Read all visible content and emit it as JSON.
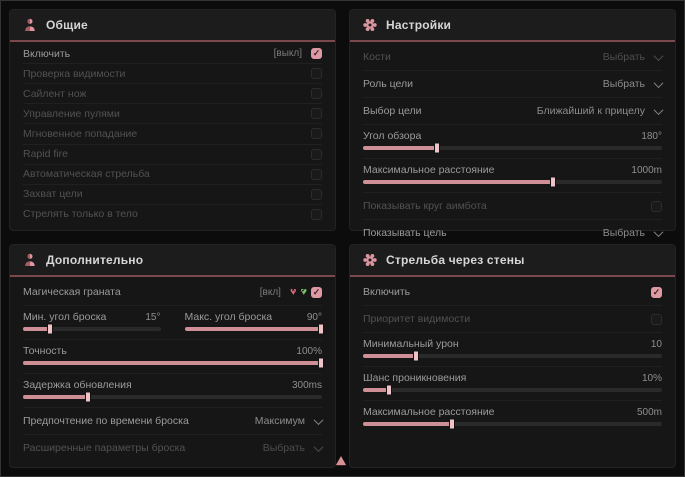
{
  "colors": {
    "accent_pink": "#dd9aa3",
    "slider_fill": "#cf8f96",
    "header_underline": "#7d474e",
    "panel_bg": "#161616",
    "outer_bg": "#0c0c0c"
  },
  "general": {
    "title": "Общие",
    "rows": [
      {
        "label": "Включить",
        "value": "[выкл]",
        "checked": true
      },
      {
        "label": "Проверка видимости",
        "checked": false
      },
      {
        "label": "Сайлент нож",
        "checked": false
      },
      {
        "label": "Управление пулями",
        "checked": false
      },
      {
        "label": "Мгновенное попадание",
        "checked": false
      },
      {
        "label": "Rapid fire",
        "checked": false
      },
      {
        "label": "Автоматическая стрельба",
        "checked": false
      },
      {
        "label": "Захват цели",
        "checked": false
      },
      {
        "label": "Стрелять только в тело",
        "checked": false
      }
    ]
  },
  "settings": {
    "title": "Настройки",
    "rows": {
      "bones": {
        "label": "Кости",
        "value": "Выбрать"
      },
      "target_role": {
        "label": "Роль цели",
        "value": "Выбрать"
      },
      "target_select": {
        "label": "Выбор цели",
        "value": "Ближайший к прицелу"
      },
      "fov": {
        "label": "Угол обзора",
        "value": "180°",
        "percent": 25
      },
      "max_distance": {
        "label": "Максимальное расстояние",
        "value": "1000m",
        "percent": 64
      },
      "show_circle": {
        "label": "Показывать круг аимбота",
        "checked": false
      },
      "show_target": {
        "label": "Показывать цель",
        "value": "Выбрать"
      }
    }
  },
  "additional": {
    "title": "Дополнительно",
    "rows": {
      "magic_grenade": {
        "label": "Магическая граната",
        "value": "[вкл]",
        "checked": true
      },
      "min_angle": {
        "label": "Мин. угол броска",
        "value": "15°",
        "percent": 20
      },
      "max_angle": {
        "label": "Макс. угол броска",
        "value": "90°",
        "percent": 100
      },
      "accuracy": {
        "label": "Точность",
        "value": "100%",
        "percent": 100
      },
      "update_delay": {
        "label": "Задержка обновления",
        "value": "300ms",
        "percent": 22
      },
      "throw_time": {
        "label": "Предпочтение по времени броска",
        "value": "Максимум"
      },
      "advanced_throw": {
        "label": "Расширенные параметры броска",
        "value": "Выбрать"
      }
    }
  },
  "wallbang": {
    "title": "Стрельба через стены",
    "rows": {
      "enable": {
        "label": "Включить",
        "checked": true
      },
      "visibility_priority": {
        "label": "Приоритет видимости",
        "checked": false
      },
      "min_damage": {
        "label": "Минимальный урон",
        "value": "10",
        "percent": 18
      },
      "penetration_chance": {
        "label": "Шанс проникновения",
        "value": "10%",
        "percent": 9
      },
      "max_distance": {
        "label": "Максимальное расстояние",
        "value": "500m",
        "percent": 30
      }
    }
  }
}
